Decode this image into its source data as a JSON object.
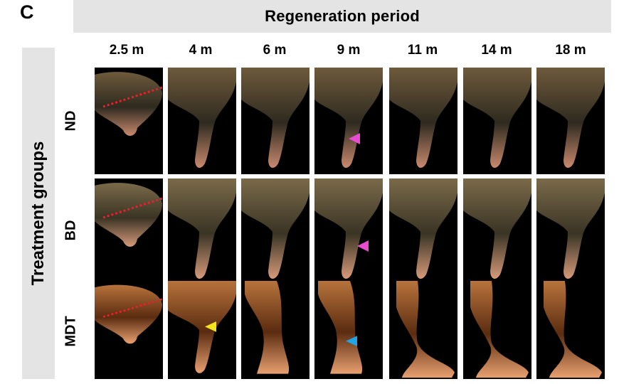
{
  "panel_label": "C",
  "header_title": "Regeneration period",
  "side_title": "Treatment groups",
  "columns": [
    "2.5 m",
    "4 m",
    "6 m",
    "9 m",
    "11 m",
    "14 m",
    "18 m"
  ],
  "rows": [
    "ND",
    "BD",
    "MDT"
  ],
  "colors": {
    "header_bg": "#e4e4e4",
    "photo_bg": "#000000",
    "cut_line": "#e8202a",
    "magenta_arrow": "#e84ccf",
    "yellow_arrow": "#f2e51a",
    "blue_arrow": "#1fa4e6"
  }
}
